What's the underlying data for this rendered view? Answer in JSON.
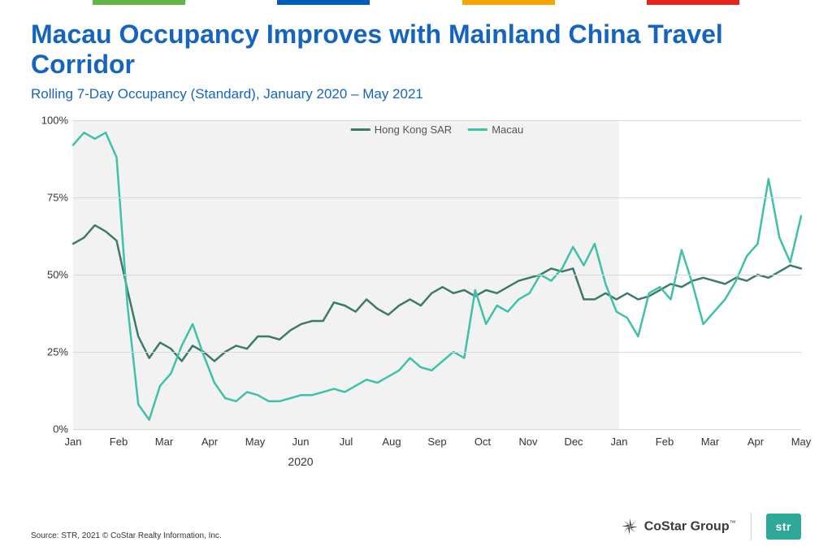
{
  "stripe_colors": [
    "#ffffff",
    "#63b54a",
    "#ffffff",
    "#005eb8",
    "#ffffff",
    "#f7a600",
    "#ffffff",
    "#e1251b",
    "#ffffff"
  ],
  "title": "Macau Occupancy Improves with Mainland China Travel Corridor",
  "subtitle": "Rolling 7-Day Occupancy (Standard), January 2020 – May 2021",
  "chart": {
    "type": "line",
    "background_color": "#ffffff",
    "shaded_region": {
      "from_index": 0,
      "to_index": 12,
      "color": "#f2f2f2"
    },
    "ylim": [
      0,
      100
    ],
    "ytick_step": 25,
    "ytick_suffix": "%",
    "ylabel_fontsize": 13,
    "grid_color": "#d9d9d9",
    "line_width": 2.5,
    "x_categories": [
      "Jan",
      "Feb",
      "Mar",
      "Apr",
      "May",
      "Jun",
      "Jul",
      "Aug",
      "Sep",
      "Oct",
      "Nov",
      "Dec",
      "Jan",
      "Feb",
      "Mar",
      "Apr",
      "May"
    ],
    "year_label": {
      "text": "2020",
      "at_index": 5
    },
    "series": [
      {
        "name": "Hong Kong SAR",
        "color": "#3d7a6b",
        "values": [
          60,
          62,
          66,
          64,
          61,
          45,
          30,
          23,
          28,
          26,
          22,
          27,
          25,
          22,
          25,
          27,
          26,
          30,
          30,
          29,
          32,
          34,
          35,
          35,
          41,
          40,
          38,
          42,
          39,
          37,
          40,
          42,
          40,
          44,
          46,
          44,
          45,
          43,
          45,
          44,
          46,
          48,
          49,
          50,
          52,
          51,
          52,
          42,
          42,
          44,
          42,
          44,
          42,
          43,
          45,
          47,
          46,
          48,
          49,
          48,
          47,
          49,
          48,
          50,
          49,
          51,
          53,
          52
        ]
      },
      {
        "name": "Macau",
        "color": "#3fc1a8",
        "values": [
          92,
          96,
          94,
          96,
          88,
          40,
          8,
          3,
          14,
          18,
          27,
          34,
          24,
          15,
          10,
          9,
          12,
          11,
          9,
          9,
          10,
          11,
          11,
          12,
          13,
          12,
          14,
          16,
          15,
          17,
          19,
          23,
          20,
          19,
          22,
          25,
          23,
          45,
          34,
          40,
          38,
          42,
          44,
          50,
          48,
          52,
          59,
          53,
          60,
          47,
          38,
          36,
          30,
          44,
          46,
          42,
          58,
          47,
          34,
          38,
          42,
          48,
          56,
          60,
          81,
          62,
          54,
          69
        ]
      }
    ],
    "legend": {
      "position": "top-center",
      "fontsize": 13,
      "text_color": "#555555"
    }
  },
  "source": "Source: STR, 2021 © CoStar Realty Information, Inc.",
  "logo_costar": "CoStar Group",
  "logo_str": "str"
}
